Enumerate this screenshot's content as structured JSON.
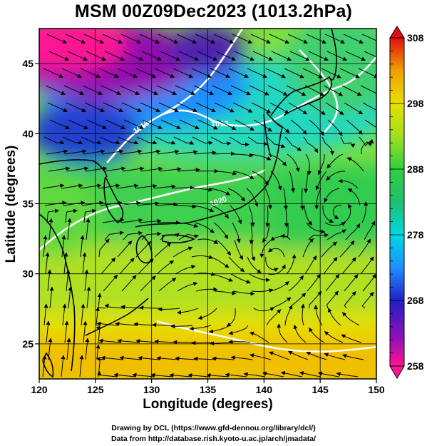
{
  "title": "MSM 00Z09Dec2023 (1013.2hPa)",
  "axes": {
    "xlabel": "Longitude (degrees)",
    "ylabel": "Latitude  (degrees)",
    "x_ticks": [
      "120",
      "125",
      "130",
      "135",
      "140",
      "145",
      "150"
    ],
    "y_ticks": [
      "25",
      "30",
      "35",
      "40",
      "45"
    ],
    "xlim": [
      120,
      150
    ],
    "ylim": [
      22.5,
      47.5
    ]
  },
  "colorbar": {
    "ticks": [
      "308",
      "298",
      "288",
      "278",
      "268",
      "258"
    ],
    "range": [
      258,
      308
    ],
    "colors": [
      "#ff1493",
      "#8b10b8",
      "#2020c8",
      "#1e90ff",
      "#00d8e0",
      "#20c070",
      "#30d040",
      "#a0e020",
      "#e8e000",
      "#f0a000",
      "#ff5500",
      "#e01010"
    ]
  },
  "contours": {
    "labels": [
      "1016",
      "1012",
      "1020"
    ],
    "color": "#ffffff"
  },
  "chart_data": {
    "type": "heatmap",
    "title": "MSM 00Z09Dec2023 (1013.2hPa)",
    "xlabel": "Longitude (degrees)",
    "ylabel": "Latitude  (degrees)",
    "xlim": [
      120,
      150
    ],
    "ylim": [
      22.5,
      47.5
    ],
    "colorbar_range": [
      258,
      308
    ],
    "grid": true
  },
  "credits": {
    "line1": "Drawing by DCL (https://www.gfd-dennou.org/library/dcl/)",
    "line2": "Data from http://database.rish.kyoto-u.ac.jp/arch/jmadata/"
  }
}
